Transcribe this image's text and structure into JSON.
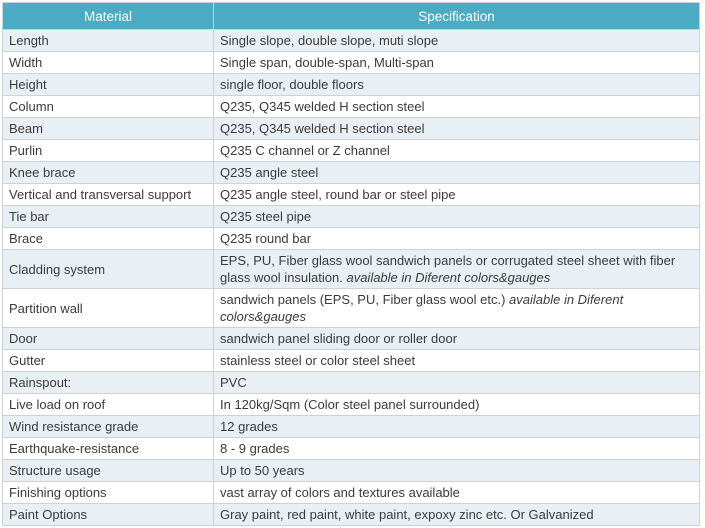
{
  "table": {
    "colors": {
      "header_bg": "#4aabc2",
      "header_text": "#ffffff",
      "row_bg": "#ffffff",
      "row_alt_bg": "#e9f0f5",
      "border": "#ccd2d6",
      "text": "#3b3b3b"
    },
    "headers": [
      "Material",
      "Specification"
    ],
    "rows": [
      {
        "material": "Length",
        "spec": [
          {
            "text": "Single slope, double slope, muti slope",
            "italic": false
          }
        ]
      },
      {
        "material": "Width",
        "spec": [
          {
            "text": "Single span, double-span, Multi-span",
            "italic": false
          }
        ]
      },
      {
        "material": "Height",
        "spec": [
          {
            "text": "single floor, double floors",
            "italic": false
          }
        ]
      },
      {
        "material": "Column",
        "spec": [
          {
            "text": "Q235, Q345 welded H section steel",
            "italic": false
          }
        ]
      },
      {
        "material": "Beam",
        "spec": [
          {
            "text": "Q235, Q345 welded H section steel",
            "italic": false
          }
        ]
      },
      {
        "material": "Purlin",
        "spec": [
          {
            "text": "Q235 C channel or Z channel",
            "italic": false
          }
        ]
      },
      {
        "material": "Knee brace",
        "spec": [
          {
            "text": "Q235 angle steel",
            "italic": false
          }
        ]
      },
      {
        "material": "Vertical and transversal support",
        "spec": [
          {
            "text": "Q235 angle steel, round bar or steel pipe",
            "italic": false
          }
        ]
      },
      {
        "material": "Tie bar",
        "spec": [
          {
            "text": "Q235 steel pipe",
            "italic": false
          }
        ]
      },
      {
        "material": "Brace",
        "spec": [
          {
            "text": "Q235 round bar",
            "italic": false
          }
        ]
      },
      {
        "material": "Cladding system",
        "spec": [
          {
            "text": "EPS, PU, Fiber glass wool sandwich panels or corrugated steel sheet with fiber glass wool insulation. ",
            "italic": false
          },
          {
            "text": "available in Diferent colors&gauges",
            "italic": true
          }
        ]
      },
      {
        "material": "Partition wall",
        "spec": [
          {
            "text": "sandwich panels (EPS, PU, Fiber glass wool etc.) ",
            "italic": false
          },
          {
            "text": "available in Diferent colors&gauges",
            "italic": true
          }
        ]
      },
      {
        "material": "Door",
        "spec": [
          {
            "text": "sandwich panel sliding door or roller door",
            "italic": false
          }
        ]
      },
      {
        "material": "Gutter",
        "spec": [
          {
            "text": "stainless steel or color steel sheet",
            "italic": false
          }
        ]
      },
      {
        "material": "Rainspout:",
        "spec": [
          {
            "text": "PVC",
            "italic": false
          }
        ]
      },
      {
        "material": "Live load on roof",
        "spec": [
          {
            "text": "In 120kg/Sqm (Color steel panel surrounded)",
            "italic": false
          }
        ]
      },
      {
        "material": "Wind resistance grade",
        "spec": [
          {
            "text": "12 grades",
            "italic": false
          }
        ]
      },
      {
        "material": "Earthquake-resistance",
        "spec": [
          {
            "text": "8 - 9 grades",
            "italic": false
          }
        ]
      },
      {
        "material": "Structure usage",
        "spec": [
          {
            "text": "Up to 50 years",
            "italic": false
          }
        ]
      },
      {
        "material": "Finishing options",
        "spec": [
          {
            "text": "vast array of colors and textures available",
            "italic": false
          }
        ]
      },
      {
        "material": "Paint Options",
        "spec": [
          {
            "text": "Gray paint, red paint, white paint, expoxy zinc etc. Or Galvanized",
            "italic": false
          }
        ]
      }
    ]
  }
}
